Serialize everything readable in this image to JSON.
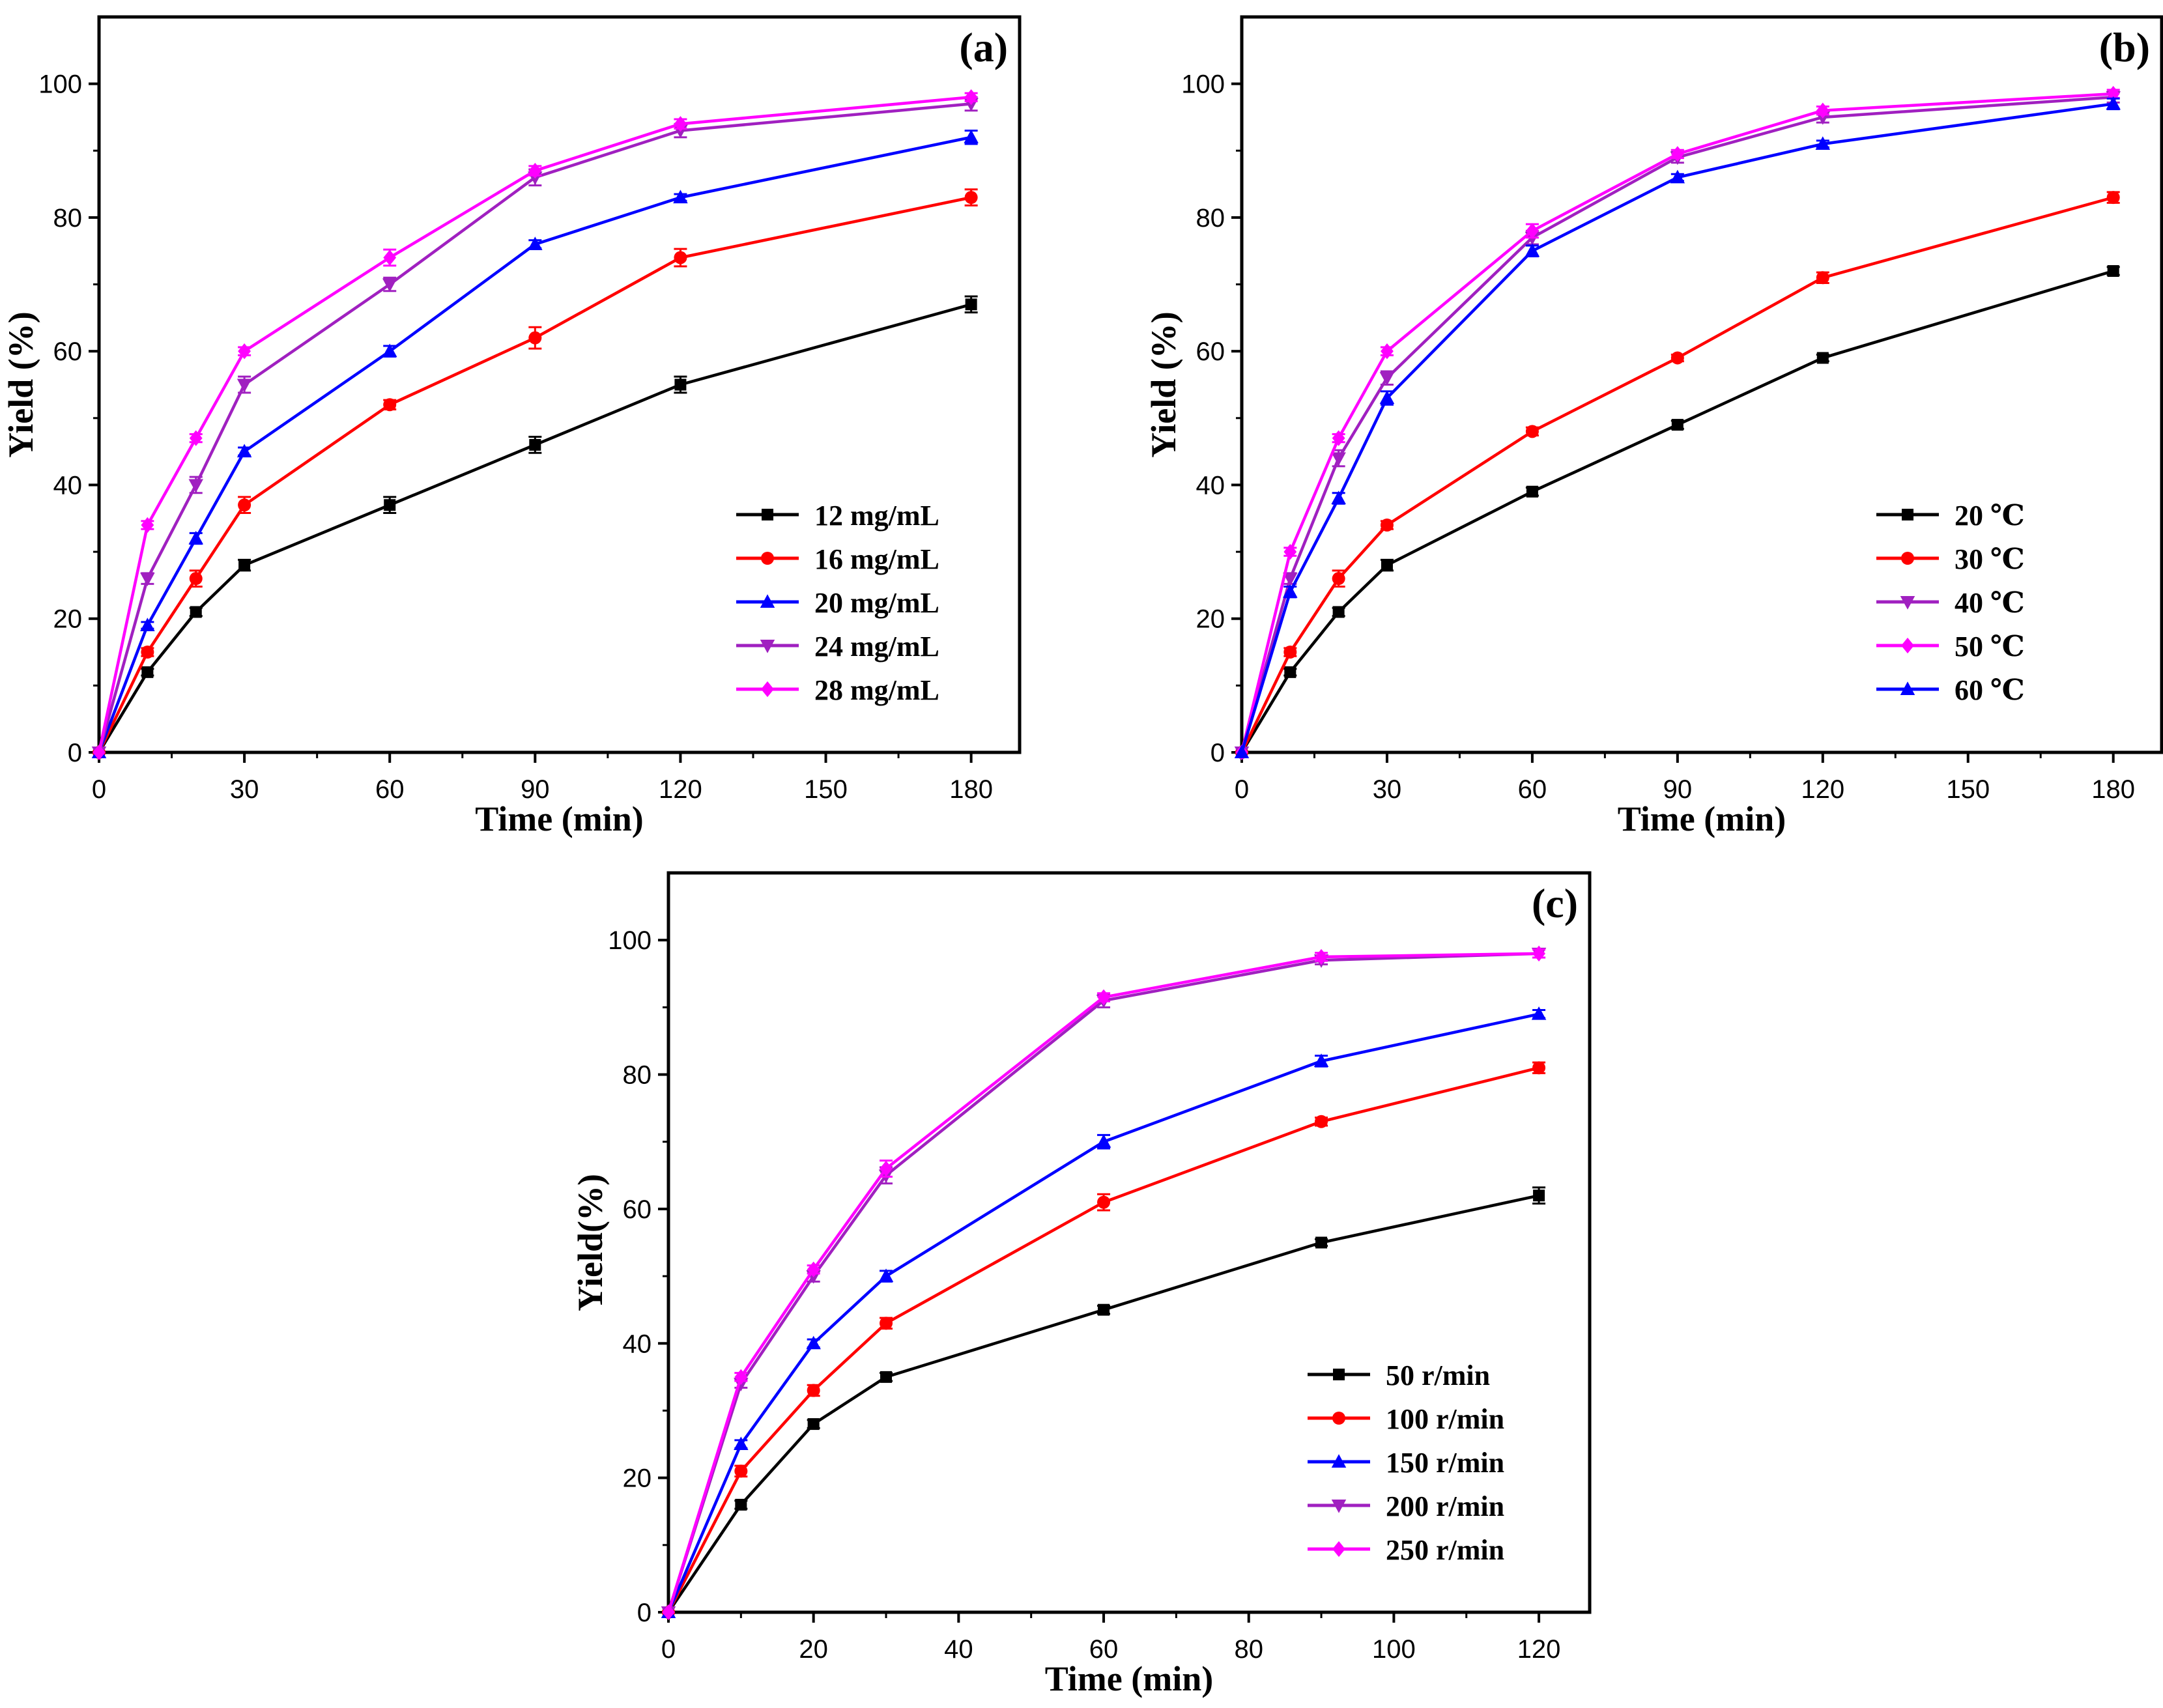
{
  "chart_data": [
    {
      "type": "line",
      "panel_label": "(a)",
      "xlabel": "Time (min)",
      "ylabel": "Yield (%)",
      "xlim": [
        0,
        190
      ],
      "ylim": [
        0,
        110
      ],
      "xticks": [
        0,
        30,
        60,
        90,
        120,
        150,
        180
      ],
      "yticks": [
        0,
        20,
        40,
        60,
        80,
        100
      ],
      "legend_position": "bottom-right",
      "x": [
        0,
        10,
        20,
        30,
        60,
        90,
        120,
        180
      ],
      "series": [
        {
          "name": "12 mg/mL",
          "color": "#000000",
          "marker": "square",
          "values": [
            0,
            12,
            21,
            28,
            37,
            46,
            55,
            67
          ],
          "errors": [
            0,
            0.5,
            0.6,
            0.8,
            1.2,
            1.2,
            1.2,
            1.2
          ]
        },
        {
          "name": "16 mg/mL",
          "color": "#ff0000",
          "marker": "circle",
          "values": [
            0,
            15,
            26,
            37,
            52,
            62,
            74,
            83
          ],
          "errors": [
            0,
            0.6,
            1.2,
            1.2,
            0.7,
            1.6,
            1.3,
            1.2
          ]
        },
        {
          "name": "20 mg/mL",
          "color": "#0000ff",
          "marker": "triangle-up",
          "values": [
            0,
            19,
            32,
            45,
            60,
            76,
            83,
            92
          ],
          "errors": [
            0,
            0.5,
            0.8,
            0.6,
            0.8,
            0.6,
            0.5,
            1.0
          ]
        },
        {
          "name": "24 mg/mL",
          "color": "#a020c0",
          "marker": "triangle-down",
          "values": [
            0,
            26,
            40,
            55,
            70,
            86,
            93,
            97
          ],
          "errors": [
            0,
            0.8,
            1.2,
            1.2,
            1.0,
            1.2,
            1.0,
            1.0
          ]
        },
        {
          "name": "28 mg/mL",
          "color": "#ff00ff",
          "marker": "diamond",
          "values": [
            0,
            34,
            47,
            60,
            74,
            87,
            94,
            98
          ],
          "errors": [
            0,
            0.6,
            0.6,
            0.6,
            1.2,
            0.7,
            0.7,
            0.6
          ]
        }
      ]
    },
    {
      "type": "line",
      "panel_label": "(b)",
      "xlabel": "Time (min)",
      "ylabel": "Yield (%)",
      "xlim": [
        0,
        190
      ],
      "ylim": [
        0,
        110
      ],
      "xticks": [
        0,
        30,
        60,
        90,
        120,
        150,
        180
      ],
      "yticks": [
        0,
        20,
        40,
        60,
        80,
        100
      ],
      "legend_position": "bottom-right",
      "x": [
        0,
        10,
        20,
        30,
        60,
        90,
        120,
        180
      ],
      "series": [
        {
          "name": "20 ℃",
          "color": "#000000",
          "marker": "square",
          "values": [
            0,
            12,
            21,
            28,
            39,
            49,
            59,
            72
          ],
          "errors": [
            0,
            0.5,
            0.6,
            0.8,
            0.6,
            0.6,
            0.5,
            0.6
          ]
        },
        {
          "name": "30 ℃",
          "color": "#ff0000",
          "marker": "circle",
          "values": [
            0,
            15,
            26,
            34,
            48,
            59,
            71,
            83
          ],
          "errors": [
            0,
            0.6,
            1.2,
            0.6,
            0.6,
            0.5,
            0.8,
            0.8
          ]
        },
        {
          "name": "40 ℃",
          "color": "#a020c0",
          "marker": "triangle-down",
          "values": [
            0,
            26,
            44,
            56,
            77,
            89,
            95,
            98
          ],
          "errors": [
            0,
            0.8,
            1.2,
            1.0,
            1.0,
            0.8,
            0.8,
            0.8
          ]
        },
        {
          "name": "50 ℃",
          "color": "#ff00ff",
          "marker": "diamond",
          "values": [
            0,
            30,
            47,
            60,
            78,
            89.5,
            96,
            98.5
          ],
          "errors": [
            0,
            0.6,
            0.6,
            0.6,
            1.0,
            0.6,
            0.6,
            0.6
          ]
        },
        {
          "name": "60 ℃",
          "color": "#0000ff",
          "marker": "triangle-up",
          "values": [
            0,
            24,
            38,
            53,
            75,
            86,
            91,
            97
          ],
          "errors": [
            0,
            0.8,
            0.8,
            1.0,
            0.8,
            0.5,
            0.5,
            0.8
          ]
        }
      ]
    },
    {
      "type": "line",
      "panel_label": "(c)",
      "xlabel": "Time (min)",
      "ylabel": "Yield(%)",
      "xlim": [
        0,
        127
      ],
      "ylim": [
        0,
        110
      ],
      "xticks": [
        0,
        20,
        40,
        60,
        80,
        100,
        120
      ],
      "yticks": [
        0,
        20,
        40,
        60,
        80,
        100
      ],
      "legend_position": "bottom-right",
      "x": [
        0,
        10,
        20,
        30,
        60,
        90,
        120
      ],
      "series": [
        {
          "name": "50 r/min",
          "color": "#000000",
          "marker": "square",
          "values": [
            0,
            16,
            28,
            35,
            45,
            55,
            62
          ],
          "errors": [
            0,
            0.6,
            0.6,
            0.6,
            0.6,
            0.5,
            1.2
          ]
        },
        {
          "name": "100 r/min",
          "color": "#ff0000",
          "marker": "circle",
          "values": [
            0,
            21,
            33,
            43,
            61,
            73,
            81
          ],
          "errors": [
            0,
            0.8,
            0.8,
            0.8,
            1.2,
            0.6,
            0.8
          ]
        },
        {
          "name": "150 r/min",
          "color": "#0000ff",
          "marker": "triangle-up",
          "values": [
            0,
            25,
            40,
            50,
            70,
            82,
            89
          ],
          "errors": [
            0,
            0.6,
            0.6,
            0.8,
            1.0,
            0.8,
            0.6
          ]
        },
        {
          "name": "200 r/min",
          "color": "#a020c0",
          "marker": "triangle-down",
          "values": [
            0,
            34,
            50,
            65,
            91,
            97,
            98
          ],
          "errors": [
            0,
            0.6,
            0.8,
            1.2,
            1.0,
            0.6,
            0.6
          ]
        },
        {
          "name": "250 r/min",
          "color": "#ff00ff",
          "marker": "diamond",
          "values": [
            0,
            35,
            51,
            66,
            91.5,
            97.5,
            98
          ],
          "errors": [
            0,
            0.6,
            0.6,
            1.2,
            0.6,
            0.6,
            0.6
          ]
        }
      ]
    }
  ]
}
